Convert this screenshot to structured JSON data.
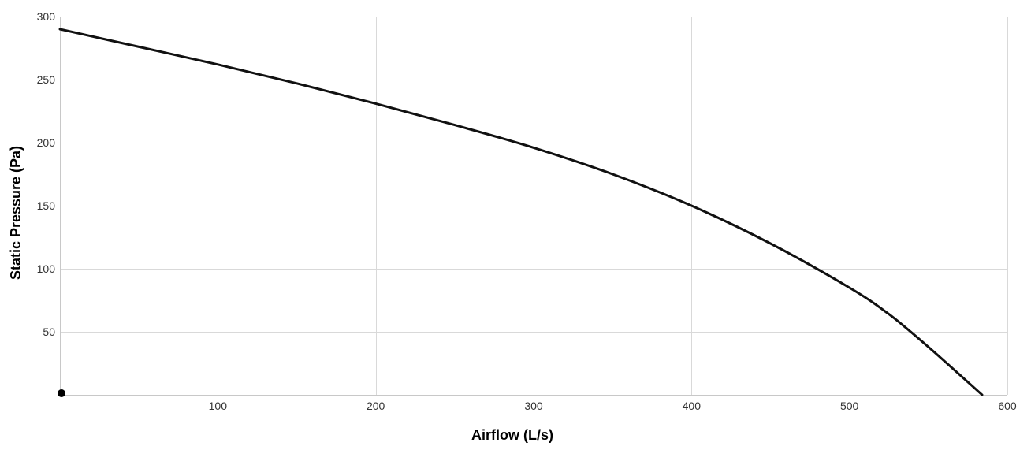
{
  "chart_data": {
    "type": "line",
    "title": "",
    "xlabel": "Airflow (L/s)",
    "ylabel": "Static Pressure (Pa)",
    "xlim": [
      0,
      600
    ],
    "ylim": [
      0,
      300
    ],
    "x_ticks": [
      100,
      200,
      300,
      400,
      500,
      600
    ],
    "y_ticks": [
      50,
      100,
      150,
      200,
      250,
      300
    ],
    "grid": true,
    "legend": "none",
    "series": [
      {
        "color": "#111111",
        "x": [
          0,
          50,
          100,
          150,
          200,
          250,
          300,
          350,
          400,
          450,
          500,
          525,
          550,
          584
        ],
        "y": [
          290,
          276,
          262,
          247,
          231,
          214,
          196,
          175,
          150,
          120,
          85,
          64,
          38,
          0
        ]
      }
    ],
    "markers": [
      {
        "x": 0,
        "y": 0,
        "color": "#000000"
      }
    ]
  }
}
